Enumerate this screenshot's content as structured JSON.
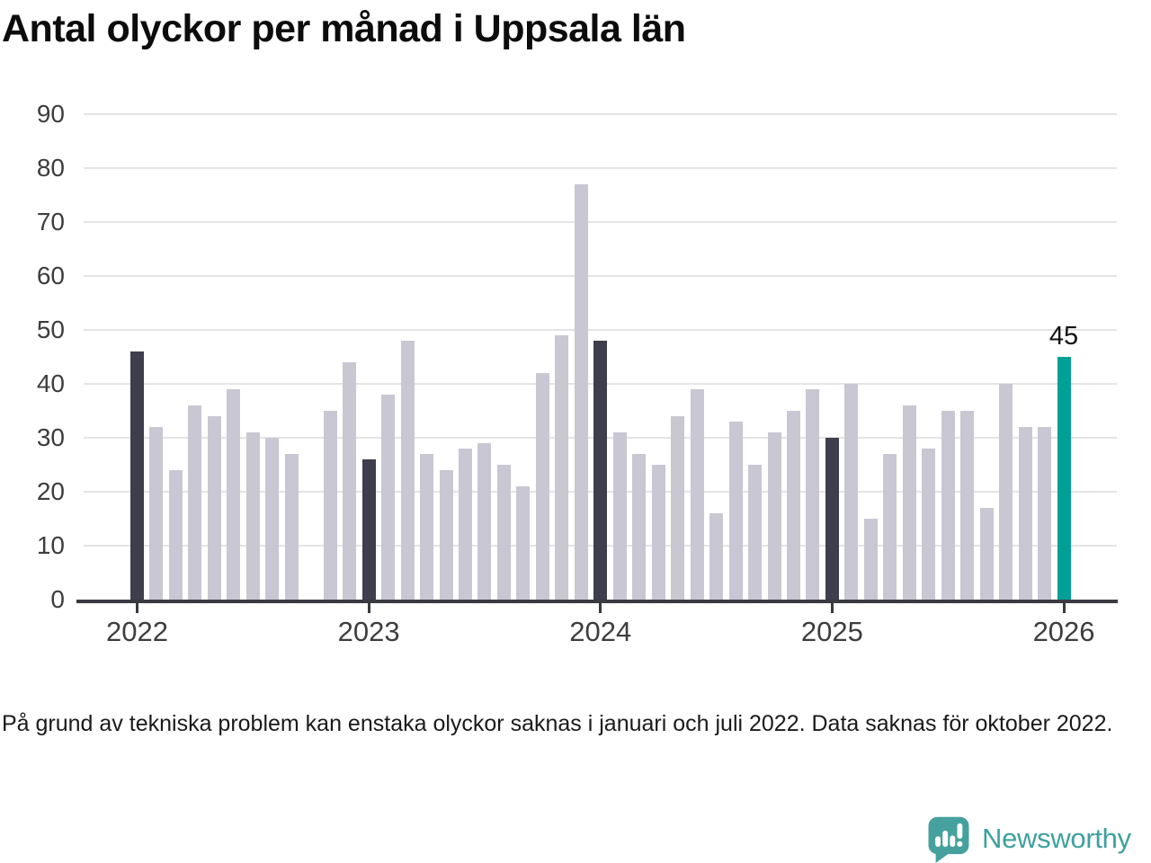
{
  "title": "Antal olyckor per månad i Uppsala län",
  "footnote": "På grund av tekniska problem kan enstaka olyckor saknas i januari och juli 2022. Data saknas för oktober 2022.",
  "logo": {
    "icon": "newsworthy-speech-bubble-chart-icon",
    "text": "Newsworthy"
  },
  "colors": {
    "bar_default": "#c9c7d2",
    "bar_january": "#3e3e4c",
    "bar_latest": "#00a096",
    "gridline": "#e4e4e6",
    "axis": "#3a3a42",
    "logo_teal": "#46a19e",
    "logo_text": "#3da19e"
  },
  "chart_data": {
    "type": "bar",
    "title": "Antal olyckor per månad i Uppsala län",
    "xlabel": "",
    "ylabel": "",
    "ylim": [
      0,
      90
    ],
    "yticks": [
      0,
      10,
      20,
      30,
      40,
      50,
      60,
      70,
      80,
      90
    ],
    "xticks": [
      "2022",
      "2023",
      "2024",
      "2025",
      "2026"
    ],
    "grid": "horizontal",
    "legend": "none",
    "annotation": {
      "text": "45",
      "month": "2026-01"
    },
    "months": [
      {
        "month": "2022-01",
        "value": 46,
        "color": "january"
      },
      {
        "month": "2022-02",
        "value": 32,
        "color": "default"
      },
      {
        "month": "2022-03",
        "value": 24,
        "color": "default"
      },
      {
        "month": "2022-04",
        "value": 36,
        "color": "default"
      },
      {
        "month": "2022-05",
        "value": 34,
        "color": "default"
      },
      {
        "month": "2022-06",
        "value": 39,
        "color": "default"
      },
      {
        "month": "2022-07",
        "value": 31,
        "color": "default"
      },
      {
        "month": "2022-08",
        "value": 30,
        "color": "default"
      },
      {
        "month": "2022-09",
        "value": 27,
        "color": "default"
      },
      {
        "month": "2022-10",
        "value": null,
        "color": "default"
      },
      {
        "month": "2022-11",
        "value": 35,
        "color": "default"
      },
      {
        "month": "2022-12",
        "value": 44,
        "color": "default"
      },
      {
        "month": "2023-01",
        "value": 26,
        "color": "january"
      },
      {
        "month": "2023-02",
        "value": 38,
        "color": "default"
      },
      {
        "month": "2023-03",
        "value": 48,
        "color": "default"
      },
      {
        "month": "2023-04",
        "value": 27,
        "color": "default"
      },
      {
        "month": "2023-05",
        "value": 24,
        "color": "default"
      },
      {
        "month": "2023-06",
        "value": 28,
        "color": "default"
      },
      {
        "month": "2023-07",
        "value": 29,
        "color": "default"
      },
      {
        "month": "2023-08",
        "value": 25,
        "color": "default"
      },
      {
        "month": "2023-09",
        "value": 21,
        "color": "default"
      },
      {
        "month": "2023-10",
        "value": 42,
        "color": "default"
      },
      {
        "month": "2023-11",
        "value": 49,
        "color": "default"
      },
      {
        "month": "2023-12",
        "value": 77,
        "color": "default"
      },
      {
        "month": "2024-01",
        "value": 48,
        "color": "january"
      },
      {
        "month": "2024-02",
        "value": 31,
        "color": "default"
      },
      {
        "month": "2024-03",
        "value": 27,
        "color": "default"
      },
      {
        "month": "2024-04",
        "value": 25,
        "color": "default"
      },
      {
        "month": "2024-05",
        "value": 34,
        "color": "default"
      },
      {
        "month": "2024-06",
        "value": 39,
        "color": "default"
      },
      {
        "month": "2024-07",
        "value": 16,
        "color": "default"
      },
      {
        "month": "2024-08",
        "value": 33,
        "color": "default"
      },
      {
        "month": "2024-09",
        "value": 25,
        "color": "default"
      },
      {
        "month": "2024-10",
        "value": 31,
        "color": "default"
      },
      {
        "month": "2024-11",
        "value": 35,
        "color": "default"
      },
      {
        "month": "2024-12",
        "value": 39,
        "color": "default"
      },
      {
        "month": "2025-01",
        "value": 30,
        "color": "january"
      },
      {
        "month": "2025-02",
        "value": 40,
        "color": "default"
      },
      {
        "month": "2025-03",
        "value": 15,
        "color": "default"
      },
      {
        "month": "2025-04",
        "value": 27,
        "color": "default"
      },
      {
        "month": "2025-05",
        "value": 36,
        "color": "default"
      },
      {
        "month": "2025-06",
        "value": 28,
        "color": "default"
      },
      {
        "month": "2025-07",
        "value": 35,
        "color": "default"
      },
      {
        "month": "2025-08",
        "value": 35,
        "color": "default"
      },
      {
        "month": "2025-09",
        "value": 17,
        "color": "default"
      },
      {
        "month": "2025-10",
        "value": 40,
        "color": "default"
      },
      {
        "month": "2025-11",
        "value": 32,
        "color": "default"
      },
      {
        "month": "2025-12",
        "value": 32,
        "color": "default"
      },
      {
        "month": "2026-01",
        "value": 45,
        "color": "latest"
      }
    ]
  }
}
